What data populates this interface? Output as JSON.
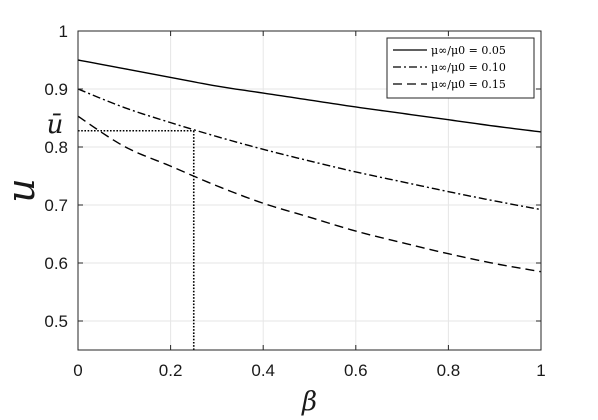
{
  "chart_data": {
    "type": "line",
    "xlabel": "β",
    "ylabel": "u",
    "xlim": [
      0,
      1
    ],
    "ylim": [
      0.45,
      1.0
    ],
    "x_ticks": [
      "0",
      "0.2",
      "0.4",
      "0.6",
      "0.8",
      "1"
    ],
    "y_ticks": [
      "0.5",
      "0.6",
      "0.7",
      "0.8",
      "0.9",
      "1"
    ],
    "grid": true,
    "legend_position": "top-right",
    "series": [
      {
        "name": "μ∞/μ0 = 0.05",
        "line_style": "solid",
        "x": [
          0,
          0.1,
          0.2,
          0.3,
          0.4,
          0.5,
          0.6,
          0.7,
          0.8,
          0.9,
          1.0
        ],
        "y": [
          0.95,
          0.935,
          0.92,
          0.905,
          0.893,
          0.881,
          0.869,
          0.858,
          0.847,
          0.836,
          0.826
        ]
      },
      {
        "name": "μ∞/μ0 = 0.10",
        "line_style": "dash-dot",
        "x": [
          0,
          0.1,
          0.2,
          0.3,
          0.4,
          0.5,
          0.6,
          0.7,
          0.8,
          0.9,
          1.0
        ],
        "y": [
          0.9,
          0.868,
          0.842,
          0.818,
          0.796,
          0.776,
          0.757,
          0.74,
          0.723,
          0.707,
          0.692
        ]
      },
      {
        "name": "μ∞/μ0 = 0.15",
        "line_style": "dashed",
        "x": [
          0,
          0.1,
          0.2,
          0.3,
          0.4,
          0.5,
          0.6,
          0.7,
          0.8,
          0.9,
          1.0
        ],
        "y": [
          0.853,
          0.801,
          0.767,
          0.733,
          0.703,
          0.679,
          0.655,
          0.635,
          0.616,
          0.599,
          0.585
        ]
      }
    ],
    "annotations": [
      {
        "label": "ū",
        "type": "dotted-guide",
        "x": 0.25,
        "y": 0.828
      }
    ]
  }
}
